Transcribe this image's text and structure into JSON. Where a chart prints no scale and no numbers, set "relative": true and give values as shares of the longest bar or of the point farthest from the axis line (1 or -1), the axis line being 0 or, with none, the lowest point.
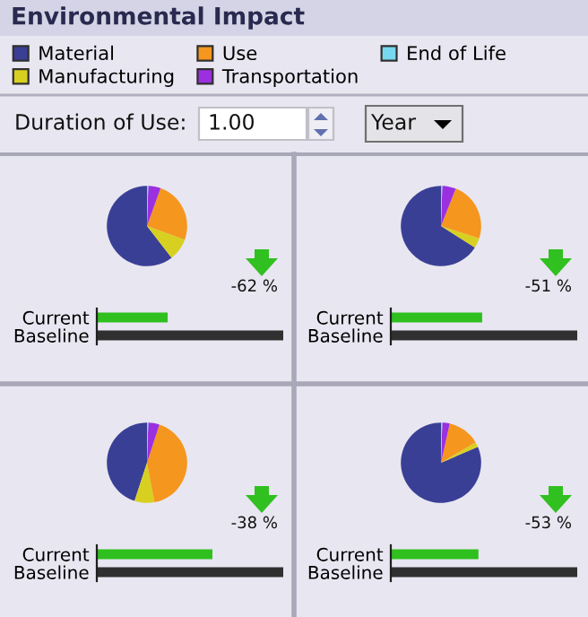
{
  "chart_data": [
    {
      "type": "other",
      "title": "Environmental Impact",
      "annotations": [
        "Duration of Use:",
        "1.00",
        "Year"
      ]
    },
    {
      "type": "pie",
      "categories": [
        "Material",
        "Manufacturing",
        "Use",
        "Transportation",
        "End of Life"
      ],
      "values": [
        60.5,
        9,
        25,
        5,
        0.5
      ],
      "colors": [
        "#3a3f96",
        "#d8d020",
        "#f5961e",
        "#9b30e0",
        "#78d8f0"
      ],
      "legend": "top"
    },
    {
      "type": "bar",
      "orientation": "horizontal",
      "relative": true,
      "categories": [
        "Current",
        "Baseline"
      ],
      "values": [
        0.38,
        1
      ],
      "colors": [
        "#2fbf1f",
        "#303030"
      ],
      "annotations": [
        "-62 %"
      ]
    },
    {
      "type": "pie",
      "categories": [
        null,
        null,
        null,
        null,
        null
      ],
      "values": [
        66,
        4,
        24,
        5.5,
        0.5
      ],
      "colors": [
        "#3a3f96",
        "#d8d020",
        "#f5961e",
        "#9b30e0",
        "#78d8f0"
      ]
    },
    {
      "type": "bar",
      "orientation": "horizontal",
      "relative": true,
      "categories": [
        "Current",
        "Baseline"
      ],
      "values": [
        0.49,
        1
      ],
      "colors": [
        "#2fbf1f",
        "#303030"
      ],
      "annotations": [
        "-51 %"
      ]
    },
    {
      "type": "pie",
      "categories": [
        null,
        null,
        null,
        null,
        null
      ],
      "values": [
        45,
        8,
        42,
        4.5,
        0.5
      ],
      "colors": [
        "#3a3f96",
        "#d8d020",
        "#f5961e",
        "#9b30e0",
        "#78d8f0"
      ]
    },
    {
      "type": "bar",
      "orientation": "horizontal",
      "relative": true,
      "categories": [
        "Current",
        "Baseline"
      ],
      "values": [
        0.62,
        1
      ],
      "colors": [
        "#2fbf1f",
        "#303030"
      ],
      "annotations": [
        "-38 %"
      ]
    },
    {
      "type": "pie",
      "categories": [
        null,
        null,
        null,
        null,
        null
      ],
      "values": [
        81.5,
        2,
        13,
        3,
        0.5
      ],
      "colors": [
        "#3a3f96",
        "#d8d020",
        "#f5961e",
        "#9b30e0",
        "#78d8f0"
      ]
    },
    {
      "type": "bar",
      "orientation": "horizontal",
      "relative": true,
      "categories": [
        "Current",
        "Baseline"
      ],
      "values": [
        0.47,
        1
      ],
      "colors": [
        "#2fbf1f",
        "#303030"
      ],
      "annotations": [
        "-53 %"
      ]
    }
  ]
}
